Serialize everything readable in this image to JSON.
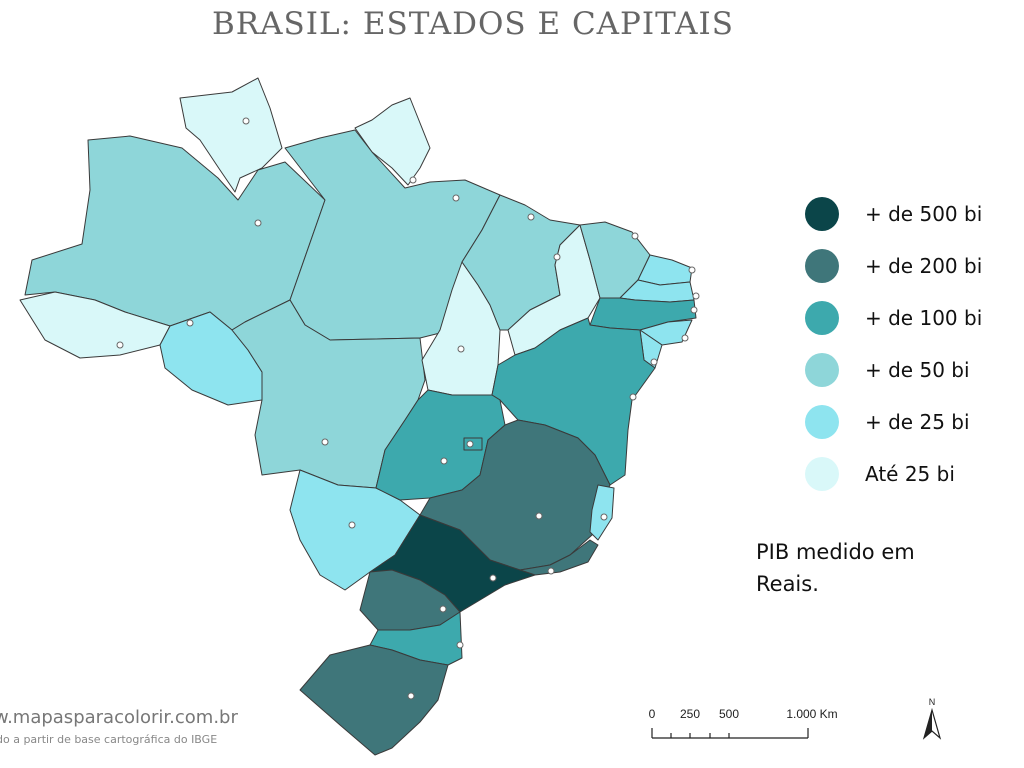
{
  "title": "BRASIL: ESTADOS E CAPITAIS",
  "legend": [
    {
      "label": "+ de 500 bi",
      "color": "#0b4549"
    },
    {
      "label": "+ de 200 bi",
      "color": "#3f767a"
    },
    {
      "label": "+ de 100 bi",
      "color": "#3da9ad"
    },
    {
      "label": "+ de 50 bi",
      "color": "#8ed6d9"
    },
    {
      "label": "+ de 25 bi",
      "color": "#8ee4ef"
    },
    {
      "label": "Até 25 bi",
      "color": "#d9f8f9"
    }
  ],
  "note": "PIB medido em Reais.",
  "scale": {
    "labels": [
      "0",
      "250",
      "500",
      "1.000 Km"
    ]
  },
  "north_label": "N",
  "watermark": "w.mapasparacolorir.com.br",
  "credit": "do a partir de base cartográfica do IBGE"
}
